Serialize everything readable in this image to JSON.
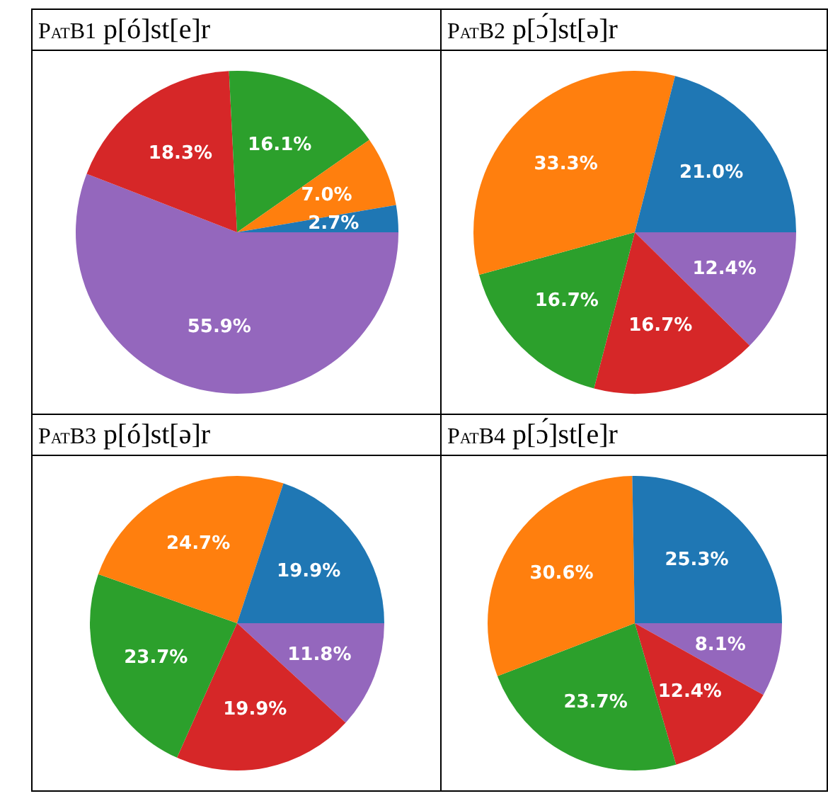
{
  "chart_data": [
    {
      "type": "pie",
      "title": "PatB1 p[ó]st[e]r",
      "categories": [
        null,
        null,
        null,
        null,
        null
      ],
      "values": [
        2.7,
        7.0,
        16.1,
        18.3,
        55.9
      ],
      "colors": [
        "#1f77b4",
        "#ff7f0e",
        "#2ca02c",
        "#d62728",
        "#9467bd"
      ],
      "value_labels": [
        "2.7%",
        "7.0%",
        "16.1%",
        "18.3%",
        "55.9%"
      ]
    },
    {
      "type": "pie",
      "title": "PatB2 p[ɔ́]st[ə]r",
      "categories": [
        null,
        null,
        null,
        null,
        null
      ],
      "values": [
        21.0,
        33.3,
        16.7,
        16.7,
        12.4
      ],
      "colors": [
        "#1f77b4",
        "#ff7f0e",
        "#2ca02c",
        "#d62728",
        "#9467bd"
      ],
      "value_labels": [
        "21.0%",
        "33.3%",
        "16.7%",
        "16.7%",
        "12.4%"
      ]
    },
    {
      "type": "pie",
      "title": "PatB3 p[ó]st[ə]r",
      "categories": [
        null,
        null,
        null,
        null,
        null
      ],
      "values": [
        19.9,
        24.7,
        23.7,
        19.9,
        11.8
      ],
      "colors": [
        "#1f77b4",
        "#ff7f0e",
        "#2ca02c",
        "#d62728",
        "#9467bd"
      ],
      "value_labels": [
        "19.9%",
        "24.7%",
        "23.7%",
        "19.9%",
        "11.8%"
      ]
    },
    {
      "type": "pie",
      "title": "PatB4 p[ɔ́]st[e]r",
      "categories": [
        null,
        null,
        null,
        null,
        null
      ],
      "values": [
        25.3,
        30.6,
        23.7,
        12.4,
        8.1
      ],
      "colors": [
        "#1f77b4",
        "#ff7f0e",
        "#2ca02c",
        "#d62728",
        "#9467bd"
      ],
      "value_labels": [
        "25.3%",
        "30.6%",
        "23.7%",
        "12.4%",
        "8.1%"
      ]
    }
  ]
}
